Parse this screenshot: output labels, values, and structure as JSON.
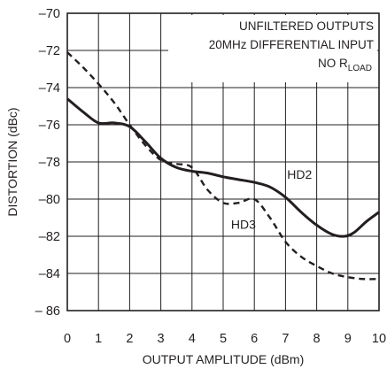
{
  "chart_data": {
    "type": "line",
    "xlabel": "OUTPUT AMPLITUDE (dBm)",
    "ylabel": "DISTORTION (dBc)",
    "xlim": [
      0,
      10
    ],
    "ylim": [
      -86,
      -70
    ],
    "x_ticks": [
      "0",
      "1",
      "2",
      "3",
      "4",
      "5",
      "6",
      "7",
      "8",
      "9",
      "10"
    ],
    "y_ticks": [
      "–70",
      "–72",
      "–74",
      "–76",
      "–78",
      "–80",
      "–82",
      "–84",
      "– 86"
    ],
    "grid": true,
    "annotations": {
      "line1": "UNFILTERED OUTPUTS",
      "line2": "20MHz DIFFERENTIAL INPUT",
      "line3_prefix": "NO R",
      "line3_sub": "LOAD"
    },
    "series": [
      {
        "name": "HD2",
        "style": "solid",
        "x": [
          0,
          0.5,
          1,
          1.5,
          2,
          2.5,
          3,
          3.5,
          4,
          4.5,
          5,
          5.5,
          6,
          6.5,
          7,
          7.5,
          8,
          8.5,
          8.9,
          9.2,
          9.6,
          10
        ],
        "y": [
          -74.6,
          -75.3,
          -75.9,
          -75.9,
          -76.1,
          -76.9,
          -77.8,
          -78.3,
          -78.5,
          -78.6,
          -78.8,
          -78.95,
          -79.1,
          -79.35,
          -79.9,
          -80.7,
          -81.4,
          -81.9,
          -82.0,
          -81.8,
          -81.2,
          -80.7
        ]
      },
      {
        "name": "HD3",
        "style": "dashed",
        "x": [
          0,
          0.5,
          1,
          1.5,
          2,
          2.5,
          3,
          3.5,
          4,
          4.5,
          5,
          5.5,
          6,
          6.5,
          7,
          7.5,
          8,
          8.5,
          9,
          9.5,
          10
        ],
        "y": [
          -72.1,
          -72.9,
          -73.8,
          -74.8,
          -76.0,
          -77.1,
          -77.9,
          -78.1,
          -78.3,
          -79.5,
          -80.2,
          -80.2,
          -80.0,
          -81.0,
          -82.3,
          -83.1,
          -83.6,
          -84.0,
          -84.2,
          -84.3,
          -84.3
        ]
      }
    ]
  }
}
